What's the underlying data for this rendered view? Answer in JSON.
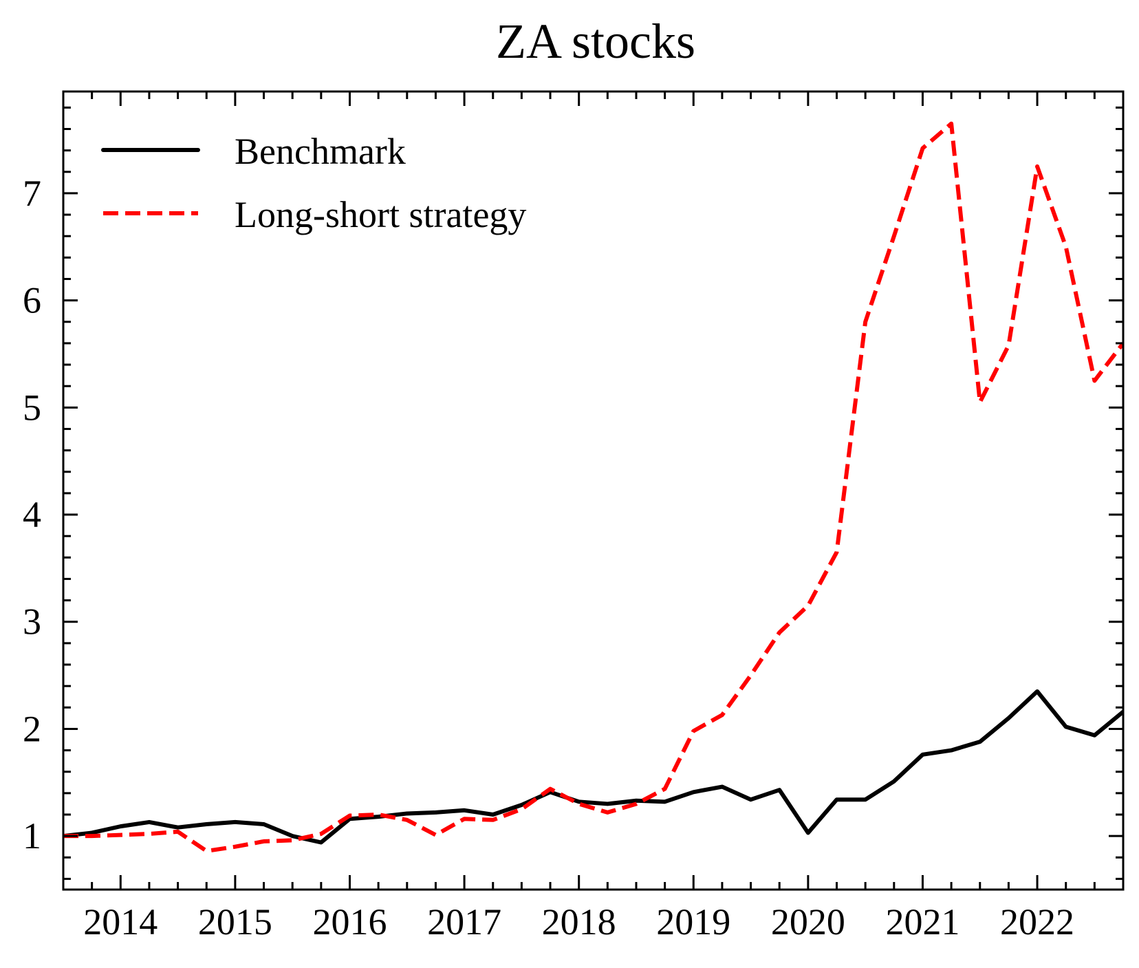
{
  "chart_data": {
    "type": "line",
    "title": "ZA stocks",
    "xlabel": "",
    "ylabel": "",
    "xlim": [
      2013.5,
      2022.75
    ],
    "ylim": [
      0.5,
      7.95
    ],
    "x_ticks": [
      2014,
      2015,
      2016,
      2017,
      2018,
      2019,
      2020,
      2021,
      2022
    ],
    "x_tick_labels": [
      "2014",
      "2015",
      "2016",
      "2017",
      "2018",
      "2019",
      "2020",
      "2021",
      "2022"
    ],
    "y_ticks": [
      1,
      2,
      3,
      4,
      5,
      6,
      7
    ],
    "y_tick_labels": [
      "1",
      "2",
      "3",
      "4",
      "5",
      "6",
      "7"
    ],
    "x_minor_step": 0.25,
    "y_minor_step": 0.2,
    "grid": false,
    "legend_position": "top-left",
    "x": [
      2013.5,
      2013.75,
      2014.0,
      2014.25,
      2014.5,
      2014.75,
      2015.0,
      2015.25,
      2015.5,
      2015.75,
      2016.0,
      2016.25,
      2016.5,
      2016.75,
      2017.0,
      2017.25,
      2017.5,
      2017.75,
      2018.0,
      2018.25,
      2018.5,
      2018.75,
      2019.0,
      2019.25,
      2019.5,
      2019.75,
      2020.0,
      2020.25,
      2020.5,
      2020.75,
      2021.0,
      2021.25,
      2021.5,
      2021.75,
      2022.0,
      2022.25,
      2022.5,
      2022.75
    ],
    "series": [
      {
        "name": "Benchmark",
        "color": "#000000",
        "style": "solid",
        "values": [
          1.0,
          1.03,
          1.09,
          1.13,
          1.08,
          1.11,
          1.13,
          1.11,
          1.0,
          0.94,
          1.16,
          1.18,
          1.21,
          1.22,
          1.24,
          1.2,
          1.29,
          1.41,
          1.32,
          1.3,
          1.33,
          1.32,
          1.41,
          1.46,
          1.34,
          1.43,
          1.03,
          1.34,
          1.34,
          1.51,
          1.76,
          1.8,
          1.88,
          2.1,
          2.35,
          2.02,
          1.94,
          2.16
        ]
      },
      {
        "name": "Long-short strategy",
        "color": "#ff0000",
        "style": "dashed",
        "values": [
          1.0,
          1.0,
          1.01,
          1.02,
          1.04,
          0.86,
          0.9,
          0.95,
          0.96,
          1.02,
          1.19,
          1.2,
          1.15,
          1.01,
          1.16,
          1.15,
          1.25,
          1.44,
          1.3,
          1.22,
          1.3,
          1.44,
          1.98,
          2.13,
          2.5,
          2.9,
          3.15,
          3.65,
          5.8,
          6.6,
          7.42,
          7.65,
          5.05,
          5.58,
          7.25,
          6.5,
          5.25,
          5.6
        ]
      }
    ]
  }
}
